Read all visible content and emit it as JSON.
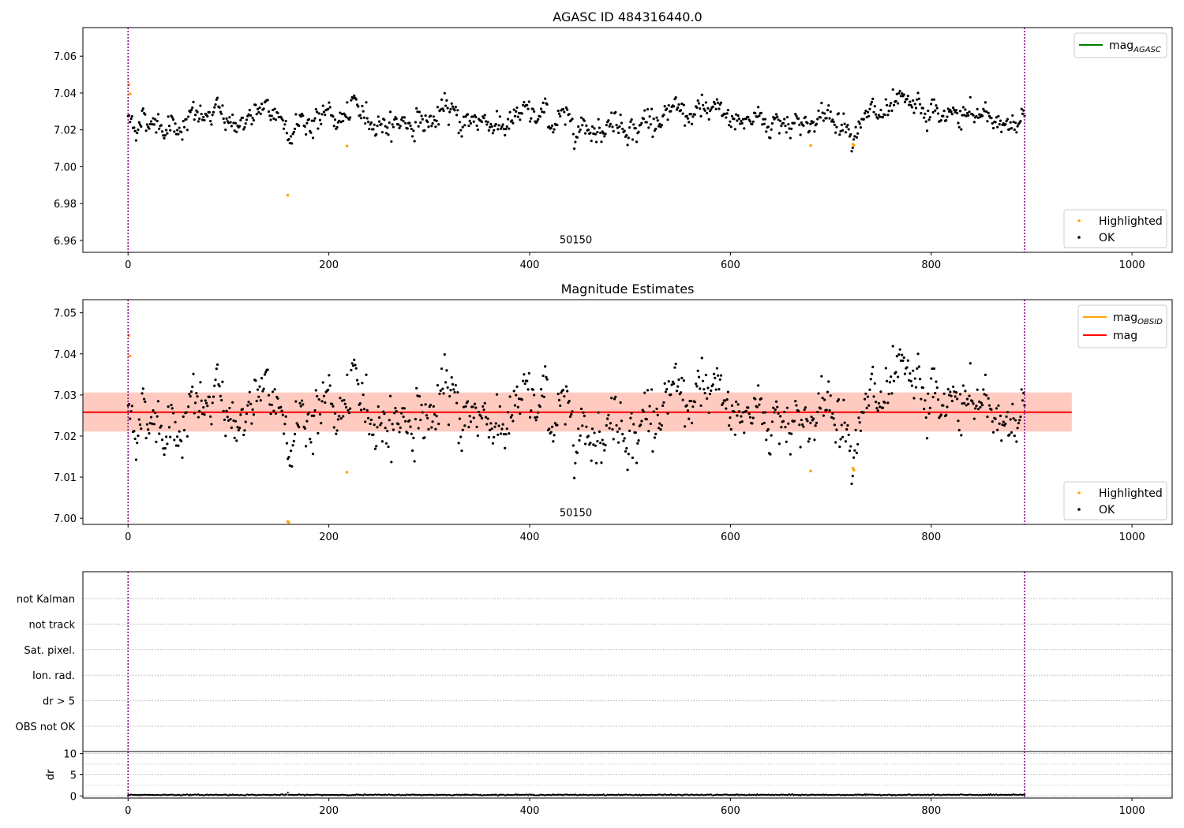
{
  "chart_data": [
    {
      "type": "scatter",
      "title": "AGASC ID 484316440.0",
      "xlim": [
        -45,
        1040
      ],
      "ylim": [
        6.9535,
        7.0755
      ],
      "xticks": [
        0,
        200,
        400,
        600,
        800,
        1000
      ],
      "yticks": [
        6.96,
        6.98,
        7.0,
        7.02,
        7.04,
        7.06
      ],
      "ytick_labels": [
        "6.96",
        "6.98",
        "7.00",
        "7.02",
        "7.04",
        "7.06"
      ],
      "vlines": [
        0,
        893
      ],
      "annotation": {
        "text": "50150",
        "x": 446,
        "y": 6.9585
      },
      "ok_series": {
        "name": "OK",
        "color": "#000000",
        "x_start": 0,
        "x_end": 893,
        "count": 893,
        "mean": 7.0257,
        "noise": 0.0045
      },
      "highlighted_series": {
        "name": "Highlighted",
        "color": "#ffa500",
        "points": [
          [
            1,
            7.0445
          ],
          [
            2,
            7.0395
          ],
          [
            159,
            6.9845
          ],
          [
            218,
            7.0112
          ],
          [
            680,
            7.0115
          ],
          [
            722,
            7.0122
          ],
          [
            723,
            7.0117
          ]
        ]
      },
      "legend_lines": [
        {
          "label": "mag",
          "sub": "AGASC",
          "color": "#008000"
        }
      ],
      "legend_points": [
        {
          "label": "Highlighted",
          "color": "#ffa500"
        },
        {
          "label": "OK",
          "color": "#000000"
        }
      ]
    },
    {
      "type": "scatter",
      "title": "Magnitude Estimates",
      "xlim": [
        -45,
        1040
      ],
      "ylim": [
        6.9985,
        7.0532
      ],
      "xticks": [
        0,
        200,
        400,
        600,
        800,
        1000
      ],
      "yticks": [
        7.0,
        7.01,
        7.02,
        7.03,
        7.04,
        7.05
      ],
      "ytick_labels": [
        "7.00",
        "7.01",
        "7.02",
        "7.03",
        "7.04",
        "7.05"
      ],
      "vlines": [
        0,
        893
      ],
      "annotation": {
        "text": "50150",
        "x": 446,
        "y": 7.0005
      },
      "mean_line": {
        "value": 7.0258,
        "color": "#ff0000"
      },
      "band_obsid": {
        "low": 7.0211,
        "high": 7.0306,
        "x_start": -45,
        "x_end": 940,
        "color": "#ffa07a"
      },
      "band_mag": {
        "low": 7.0211,
        "high": 7.0306,
        "x_start": -45,
        "x_end": 940,
        "color": "#ffb6c1"
      },
      "ok_series": {
        "name": "OK",
        "color": "#000000",
        "x_start": 0,
        "x_end": 893,
        "count": 893,
        "mean": 7.0257,
        "noise": 0.0045
      },
      "highlighted_series": {
        "name": "Highlighted",
        "color": "#ffa500",
        "points": [
          [
            1,
            7.0445
          ],
          [
            2,
            7.0395
          ],
          [
            159,
            6.9992
          ],
          [
            160,
            6.999
          ],
          [
            218,
            7.0112
          ],
          [
            680,
            7.0115
          ],
          [
            722,
            7.0122
          ],
          [
            723,
            7.0117
          ]
        ]
      },
      "legend_lines": [
        {
          "label": "mag",
          "sub": "OBSID",
          "color": "#ffa500"
        },
        {
          "label": "mag",
          "sub": "",
          "color": "#ff0000"
        }
      ],
      "legend_points": [
        {
          "label": "Highlighted",
          "color": "#ffa500"
        },
        {
          "label": "OK",
          "color": "#000000"
        }
      ]
    },
    {
      "type": "table",
      "title": "",
      "xlim": [
        -45,
        1040
      ],
      "xticks": [
        0,
        200,
        400,
        600,
        800,
        1000
      ],
      "flags": [
        "not Kalman",
        "not track",
        "Sat. pixel.",
        "Ion. rad.",
        "dr > 5",
        "OBS not OK"
      ],
      "vlines": [
        0,
        893
      ]
    },
    {
      "type": "line",
      "title": "",
      "ylabel": "dr",
      "xlim": [
        -45,
        1040
      ],
      "ylim": [
        -0.5,
        10.5
      ],
      "xticks": [
        0,
        200,
        400,
        600,
        800,
        1000
      ],
      "yticks": [
        0,
        5,
        10
      ],
      "ytick_labels": [
        "0",
        "5",
        "10"
      ],
      "vlines": [
        0,
        893
      ],
      "dr_series": {
        "color": "#000000",
        "x_start": 0,
        "x_end": 893,
        "count": 893,
        "mean": 0.25,
        "noise": 0.12,
        "spikes": [
          [
            159,
            0.8
          ]
        ]
      }
    }
  ]
}
